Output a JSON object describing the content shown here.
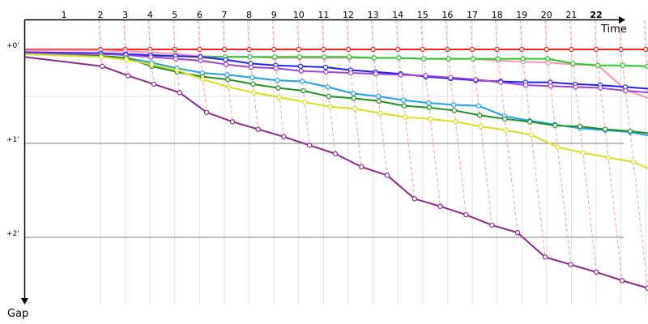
{
  "chart_data": {
    "type": "line",
    "xlabel": "Time",
    "ylabel": "Gap",
    "x_ticks": [
      "1",
      "2",
      "3",
      "4",
      "5",
      "6",
      "7",
      "8",
      "9",
      "10",
      "11",
      "12",
      "13",
      "14",
      "15",
      "16",
      "17",
      "18",
      "19",
      "20",
      "21",
      "22"
    ],
    "current_lap": "22",
    "y_ticks": [
      {
        "value": 0,
        "label": "+0'"
      },
      {
        "value": 1,
        "label": "+1'"
      },
      {
        "value": 2,
        "label": "+2'"
      }
    ],
    "xlim": [
      0,
      24.1
    ],
    "ylim": [
      -0.1,
      2.75
    ],
    "grid": true,
    "series": [
      {
        "color": "#ff2020",
        "values": [
          0.0,
          0.0,
          0.0,
          0.0,
          0.0,
          0.0,
          0.0,
          0.0,
          0.0,
          0.0,
          0.0,
          0.0,
          0.0,
          0.0,
          0.0,
          0.0,
          0.0,
          0.0,
          0.0,
          0.0,
          0.0,
          0.0,
          0.0,
          0.0
        ]
      },
      {
        "color": "#ff90b0",
        "values": [
          0.01,
          0.01,
          0.02,
          0.03,
          0.05,
          0.07,
          0.08,
          0.08,
          0.09,
          0.09,
          0.09,
          0.09,
          0.09,
          0.09,
          0.1,
          0.1,
          0.1,
          0.12,
          0.13,
          0.14,
          0.16,
          0.17,
          0.43,
          0.53
        ]
      },
      {
        "color": "#22cc22",
        "values": [
          0.03,
          0.04,
          0.05,
          0.07,
          0.07,
          0.08,
          0.08,
          0.08,
          0.08,
          0.08,
          0.08,
          0.08,
          0.09,
          0.09,
          0.1,
          0.1,
          0.1,
          0.1,
          0.1,
          0.1,
          0.15,
          0.17,
          0.17,
          0.18
        ]
      },
      {
        "color": "#2020ff",
        "values": [
          0.03,
          0.04,
          0.05,
          0.06,
          0.07,
          0.08,
          0.11,
          0.15,
          0.17,
          0.18,
          0.19,
          0.22,
          0.24,
          0.26,
          0.29,
          0.31,
          0.33,
          0.34,
          0.35,
          0.35,
          0.37,
          0.38,
          0.4,
          0.42
        ]
      },
      {
        "color": "#a040e0",
        "values": [
          0.04,
          0.05,
          0.06,
          0.08,
          0.1,
          0.12,
          0.16,
          0.19,
          0.2,
          0.23,
          0.24,
          0.25,
          0.26,
          0.27,
          0.28,
          0.3,
          0.32,
          0.35,
          0.38,
          0.39,
          0.4,
          0.41,
          0.44,
          0.46
        ]
      },
      {
        "color": "#20a0f0",
        "values": [
          0.05,
          0.07,
          0.09,
          0.14,
          0.2,
          0.25,
          0.27,
          0.3,
          0.33,
          0.34,
          0.4,
          0.47,
          0.5,
          0.54,
          0.57,
          0.59,
          0.6,
          0.71,
          0.76,
          0.8,
          0.84,
          0.86,
          0.88,
          0.93
        ]
      },
      {
        "color": "#209020",
        "values": [
          0.05,
          0.07,
          0.09,
          0.18,
          0.24,
          0.29,
          0.32,
          0.37,
          0.41,
          0.44,
          0.5,
          0.52,
          0.55,
          0.6,
          0.62,
          0.65,
          0.7,
          0.74,
          0.77,
          0.81,
          0.82,
          0.85,
          0.87,
          0.9
        ]
      },
      {
        "color": "#dddd20",
        "values": [
          0.05,
          0.08,
          0.11,
          0.16,
          0.22,
          0.32,
          0.4,
          0.46,
          0.51,
          0.56,
          0.61,
          0.63,
          0.68,
          0.72,
          0.74,
          0.77,
          0.82,
          0.86,
          0.91,
          1.04,
          1.1,
          1.15,
          1.2,
          1.32
        ]
      },
      {
        "color": "#8a2a8a",
        "values": [
          0.08,
          0.18,
          0.28,
          0.37,
          0.46,
          0.67,
          0.77,
          0.85,
          0.93,
          1.02,
          1.11,
          1.25,
          1.34,
          1.59,
          1.67,
          1.76,
          1.87,
          1.95,
          2.21,
          2.29,
          2.37,
          2.46,
          2.54,
          2.59
        ]
      }
    ]
  }
}
